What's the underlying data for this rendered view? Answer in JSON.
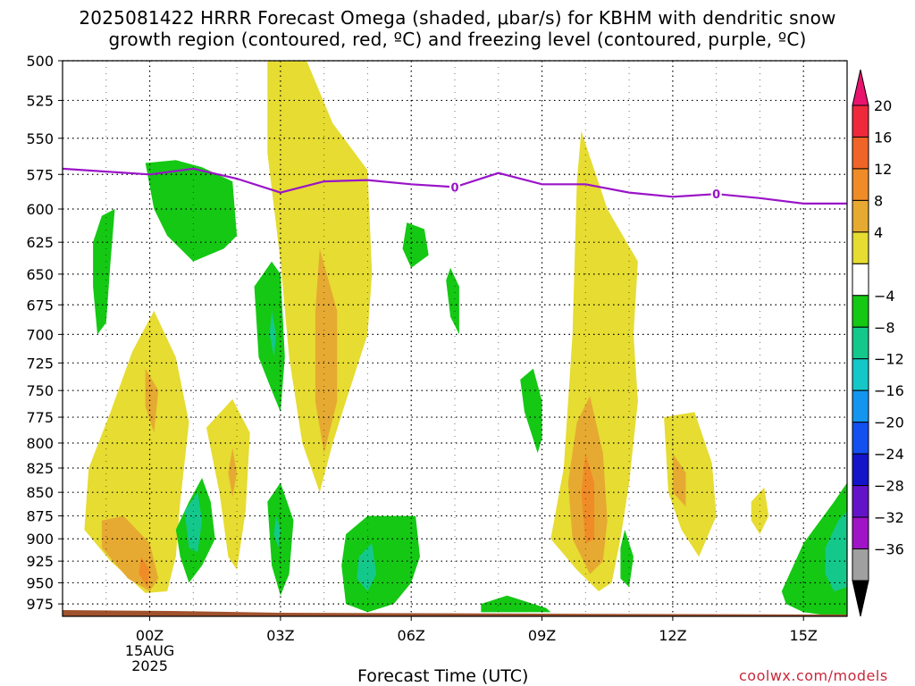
{
  "title_line1": "2025081422 HRRR Forecast Omega (shaded, μbar/s) for KBHM with dendritic snow",
  "title_line2": "growth region (contoured, red, ºC) and freezing level (contoured, purple, ºC)",
  "credit": "coolwx.com/models",
  "colors": {
    "freezing_line": "#9a14c8",
    "terrain": "#a0522d"
  },
  "chart_data": {
    "type": "heatmap",
    "xlabel": "Forecast Time (UTC)",
    "ylabel": "",
    "x_ticks": [
      {
        "hour": 0,
        "label": "00Z"
      },
      {
        "hour": 3,
        "label": "03Z"
      },
      {
        "hour": 6,
        "label": "06Z"
      },
      {
        "hour": 9,
        "label": "09Z"
      },
      {
        "hour": 12,
        "label": "12Z"
      },
      {
        "hour": 15,
        "label": "15Z"
      }
    ],
    "date_label": [
      "15AUG",
      "2025"
    ],
    "xlim": [
      -2,
      16
    ],
    "y_levels_hpa": [
      500,
      525,
      550,
      575,
      600,
      625,
      650,
      675,
      700,
      725,
      750,
      775,
      800,
      825,
      850,
      875,
      900,
      925,
      950,
      975
    ],
    "y_scale": "log-pressure",
    "ylim": [
      500,
      990
    ],
    "grid": true,
    "colorbar": {
      "labels": [
        "20",
        "16",
        "12",
        "8",
        "4",
        "−4",
        "−8",
        "−12",
        "−16",
        "−20",
        "−24",
        "−28",
        "−32",
        "−36"
      ],
      "colors": [
        "#e8146e",
        "#f0283c",
        "#f06428",
        "#f08c28",
        "#e6aa32",
        "#e6dc32",
        "#ffffff",
        "#14c814",
        "#14c88c",
        "#14c8c8",
        "#1496f0",
        "#1450f0",
        "#1414c8",
        "#6414c8",
        "#a014c8",
        "#a0a0a0",
        "#000000"
      ]
    },
    "freezing_level": {
      "label": "0",
      "label_hours": [
        7,
        13
      ],
      "points": [
        [
          -2,
          571
        ],
        [
          -1,
          573
        ],
        [
          0,
          575
        ],
        [
          1,
          571
        ],
        [
          2,
          578
        ],
        [
          3,
          588
        ],
        [
          4,
          580
        ],
        [
          5,
          579
        ],
        [
          6,
          582
        ],
        [
          7,
          584
        ],
        [
          8,
          574
        ],
        [
          9,
          582
        ],
        [
          10,
          582
        ],
        [
          11,
          588
        ],
        [
          12,
          591
        ],
        [
          13,
          589
        ],
        [
          14,
          592
        ],
        [
          15,
          596
        ],
        [
          16,
          596
        ]
      ]
    },
    "omega_regions": [
      {
        "level": 4,
        "points": [
          [
            2.7,
            500
          ],
          [
            3.6,
            500
          ],
          [
            4.2,
            540
          ],
          [
            5.0,
            572
          ],
          [
            5.1,
            650
          ],
          [
            5.0,
            700
          ],
          [
            4.5,
            760
          ],
          [
            4.2,
            800
          ],
          [
            3.9,
            850
          ],
          [
            3.5,
            800
          ],
          [
            3.2,
            720
          ],
          [
            3.0,
            640
          ],
          [
            2.7,
            560
          ]
        ]
      },
      {
        "level": 8,
        "points": [
          [
            3.9,
            630
          ],
          [
            4.3,
            680
          ],
          [
            4.3,
            760
          ],
          [
            4.0,
            810
          ],
          [
            3.8,
            760
          ],
          [
            3.8,
            680
          ]
        ]
      },
      {
        "level": 4,
        "points": [
          [
            -1.4,
            825
          ],
          [
            -0.9,
            770
          ],
          [
            -0.4,
            715
          ],
          [
            0.1,
            680
          ],
          [
            0.6,
            720
          ],
          [
            0.9,
            780
          ],
          [
            0.7,
            860
          ],
          [
            0.6,
            920
          ],
          [
            0.4,
            960
          ],
          [
            -0.1,
            962
          ],
          [
            -0.9,
            925
          ],
          [
            -1.5,
            890
          ]
        ]
      },
      {
        "level": 8,
        "points": [
          [
            -0.1,
            730
          ],
          [
            0.2,
            750
          ],
          [
            0.1,
            790
          ],
          [
            -0.1,
            765
          ]
        ]
      },
      {
        "level": 8,
        "points": [
          [
            -1.1,
            880
          ],
          [
            -0.6,
            875
          ],
          [
            0.0,
            905
          ],
          [
            0.2,
            945
          ],
          [
            0.0,
            960
          ],
          [
            -0.5,
            945
          ],
          [
            -1.1,
            910
          ]
        ]
      },
      {
        "level": 12,
        "points": [
          [
            -0.2,
            920
          ],
          [
            0.0,
            935
          ],
          [
            -0.05,
            955
          ],
          [
            -0.25,
            940
          ]
        ]
      },
      {
        "level": 4,
        "points": [
          [
            1.3,
            785
          ],
          [
            1.9,
            758
          ],
          [
            2.3,
            790
          ],
          [
            2.2,
            870
          ],
          [
            2.0,
            935
          ],
          [
            1.8,
            920
          ],
          [
            1.6,
            850
          ]
        ]
      },
      {
        "level": 8,
        "points": [
          [
            1.9,
            805
          ],
          [
            2.0,
            830
          ],
          [
            1.9,
            855
          ],
          [
            1.8,
            830
          ]
        ]
      },
      {
        "level": 4,
        "points": [
          [
            9.8,
            580
          ],
          [
            9.9,
            545
          ],
          [
            10.5,
            600
          ],
          [
            11.2,
            640
          ],
          [
            11.1,
            700
          ],
          [
            11.2,
            760
          ],
          [
            11.0,
            840
          ],
          [
            10.8,
            900
          ],
          [
            10.6,
            950
          ],
          [
            10.3,
            960
          ],
          [
            9.8,
            935
          ],
          [
            9.2,
            900
          ],
          [
            9.5,
            825
          ],
          [
            9.7,
            700
          ]
        ]
      },
      {
        "level": 8,
        "points": [
          [
            9.8,
            780
          ],
          [
            10.1,
            755
          ],
          [
            10.4,
            810
          ],
          [
            10.5,
            880
          ],
          [
            10.4,
            925
          ],
          [
            10.1,
            940
          ],
          [
            9.7,
            900
          ],
          [
            9.6,
            840
          ]
        ]
      },
      {
        "level": 12,
        "points": [
          [
            10.0,
            810
          ],
          [
            10.2,
            840
          ],
          [
            10.2,
            900
          ],
          [
            10.0,
            905
          ],
          [
            9.9,
            850
          ]
        ]
      },
      {
        "level": 4,
        "points": [
          [
            11.8,
            775
          ],
          [
            12.5,
            770
          ],
          [
            12.9,
            820
          ],
          [
            13.0,
            875
          ],
          [
            12.6,
            920
          ],
          [
            12.2,
            890
          ],
          [
            11.9,
            850
          ]
        ]
      },
      {
        "level": 8,
        "points": [
          [
            12.0,
            810
          ],
          [
            12.3,
            830
          ],
          [
            12.3,
            865
          ],
          [
            12.0,
            850
          ]
        ]
      },
      {
        "level": 4,
        "points": [
          [
            13.8,
            860
          ],
          [
            14.1,
            845
          ],
          [
            14.2,
            875
          ],
          [
            14.0,
            895
          ],
          [
            13.8,
            880
          ]
        ]
      },
      {
        "level": -4,
        "points": [
          [
            -0.1,
            567
          ],
          [
            0.6,
            565
          ],
          [
            1.2,
            570
          ],
          [
            1.9,
            580
          ],
          [
            2.0,
            620
          ],
          [
            1.7,
            630
          ],
          [
            1.0,
            640
          ],
          [
            0.4,
            620
          ],
          [
            0.1,
            600
          ]
        ]
      },
      {
        "level": -4,
        "points": [
          [
            -1.3,
            625
          ],
          [
            -1.1,
            605
          ],
          [
            -0.8,
            600
          ],
          [
            -0.9,
            640
          ],
          [
            -1.0,
            690
          ],
          [
            -1.2,
            700
          ],
          [
            -1.3,
            660
          ]
        ]
      },
      {
        "level": -4,
        "points": [
          [
            2.4,
            660
          ],
          [
            2.8,
            640
          ],
          [
            3.0,
            650
          ],
          [
            3.1,
            720
          ],
          [
            3.0,
            770
          ],
          [
            2.8,
            750
          ],
          [
            2.5,
            720
          ]
        ]
      },
      {
        "level": -8,
        "points": [
          [
            2.8,
            680
          ],
          [
            2.9,
            700
          ],
          [
            2.85,
            720
          ],
          [
            2.75,
            700
          ]
        ]
      },
      {
        "level": -4,
        "points": [
          [
            0.6,
            890
          ],
          [
            0.9,
            860
          ],
          [
            1.2,
            835
          ],
          [
            1.4,
            860
          ],
          [
            1.5,
            900
          ],
          [
            1.2,
            930
          ],
          [
            0.9,
            950
          ],
          [
            0.7,
            920
          ]
        ]
      },
      {
        "level": -8,
        "points": [
          [
            0.8,
            870
          ],
          [
            1.1,
            850
          ],
          [
            1.2,
            880
          ],
          [
            1.1,
            915
          ],
          [
            0.9,
            910
          ]
        ]
      },
      {
        "level": -4,
        "points": [
          [
            2.7,
            860
          ],
          [
            3.0,
            840
          ],
          [
            3.3,
            880
          ],
          [
            3.2,
            940
          ],
          [
            3.0,
            965
          ],
          [
            2.8,
            930
          ]
        ]
      },
      {
        "level": -8,
        "points": [
          [
            2.9,
            875
          ],
          [
            3.0,
            890
          ],
          [
            2.95,
            910
          ],
          [
            2.85,
            895
          ]
        ]
      },
      {
        "level": -4,
        "points": [
          [
            4.5,
            895
          ],
          [
            5.0,
            875
          ],
          [
            6.1,
            875
          ],
          [
            6.2,
            920
          ],
          [
            6.0,
            950
          ],
          [
            5.6,
            975
          ],
          [
            5.0,
            985
          ],
          [
            4.5,
            975
          ],
          [
            4.4,
            930
          ]
        ]
      },
      {
        "level": -8,
        "points": [
          [
            4.8,
            920
          ],
          [
            5.1,
            905
          ],
          [
            5.2,
            940
          ],
          [
            5.0,
            960
          ],
          [
            4.75,
            945
          ]
        ]
      },
      {
        "level": -4,
        "points": [
          [
            5.9,
            610
          ],
          [
            6.3,
            615
          ],
          [
            6.4,
            635
          ],
          [
            6.0,
            645
          ],
          [
            5.8,
            630
          ]
        ]
      },
      {
        "level": -4,
        "points": [
          [
            6.8,
            655
          ],
          [
            6.9,
            645
          ],
          [
            7.1,
            660
          ],
          [
            7.1,
            700
          ],
          [
            6.9,
            685
          ]
        ]
      },
      {
        "level": -4,
        "points": [
          [
            8.5,
            740
          ],
          [
            8.8,
            730
          ],
          [
            9.0,
            760
          ],
          [
            9.0,
            795
          ],
          [
            8.9,
            810
          ],
          [
            8.6,
            770
          ]
        ]
      },
      {
        "level": -4,
        "points": [
          [
            10.8,
            910
          ],
          [
            10.9,
            890
          ],
          [
            11.1,
            920
          ],
          [
            11.0,
            955
          ],
          [
            10.8,
            945
          ]
        ]
      },
      {
        "level": -4,
        "points": [
          [
            7.6,
            975
          ],
          [
            8.2,
            965
          ],
          [
            9.1,
            980
          ],
          [
            9.2,
            985
          ],
          [
            7.6,
            985
          ]
        ]
      },
      {
        "level": -4,
        "points": [
          [
            14.5,
            960
          ],
          [
            15.0,
            905
          ],
          [
            15.7,
            860
          ],
          [
            16.0,
            840
          ],
          [
            16.0,
            990
          ],
          [
            15.7,
            990
          ],
          [
            15.0,
            985
          ],
          [
            14.6,
            975
          ]
        ]
      },
      {
        "level": -8,
        "points": [
          [
            15.5,
            910
          ],
          [
            15.8,
            880
          ],
          [
            16.0,
            870
          ],
          [
            16.0,
            955
          ],
          [
            15.7,
            960
          ],
          [
            15.5,
            940
          ]
        ]
      }
    ]
  }
}
